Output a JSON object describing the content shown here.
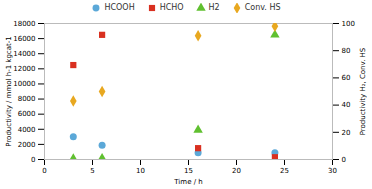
{
  "chart_data": {
    "type": "scatter",
    "xlabel": "Time / h",
    "ylabel": "Productivity / mmol h-1 kgcat-1",
    "y2label": "Productivity H₂, Conv. HS",
    "x": [
      3,
      6,
      16,
      24
    ],
    "series": [
      {
        "name": "HCOOH",
        "color": "#5BA8D8",
        "marker": "circle",
        "values": [
          3000,
          1900,
          900,
          900
        ]
      },
      {
        "name": "HCHO",
        "color": "#D93020",
        "marker": "square",
        "values": [
          12500,
          16500,
          1500,
          300
        ]
      },
      {
        "name": "H2",
        "color": "#60C030",
        "marker": "triangle",
        "values": [
          100,
          150,
          3900,
          16500
        ]
      },
      {
        "name": "Conv. HS",
        "color": "#E8A820",
        "marker": "diamond",
        "axis": "y2",
        "values": [
          43,
          50,
          91,
          98
        ]
      }
    ],
    "xlim": [
      0,
      30
    ],
    "xticks": [
      0,
      5,
      10,
      15,
      20,
      25,
      30
    ],
    "ylim": [
      0,
      18000
    ],
    "yticks": [
      0,
      2000,
      4000,
      6000,
      8000,
      10000,
      12000,
      14000,
      16000,
      18000
    ],
    "y2lim": [
      0,
      100
    ],
    "y2ticks": [
      0,
      20,
      40,
      60,
      80,
      100
    ],
    "grid": false,
    "legend": "top"
  }
}
